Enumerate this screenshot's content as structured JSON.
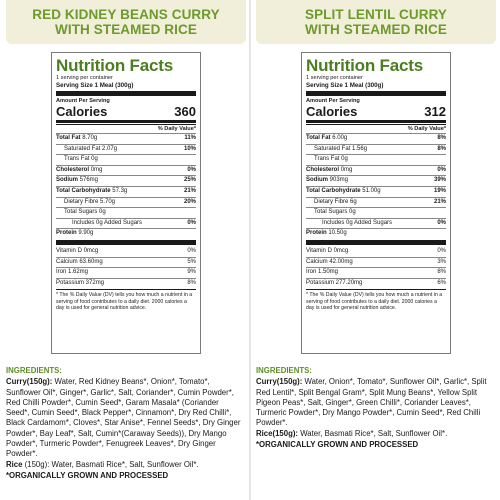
{
  "products": [
    {
      "banner": "RED KIDNEY BEANS CURRY\nWITH STEAMED RICE",
      "nutrition": {
        "title": "Nutrition Facts",
        "servings": "1 serving per container",
        "serving_size_label": "Serving Size",
        "serving_size_value": "1 Meal (300g)",
        "amount_per_serving": "Amount Per Serving",
        "calories_label": "Calories",
        "calories_value": "360",
        "dv_header": "% Daily Value*",
        "rows": [
          {
            "bold": "Total Fat",
            "value": "8.70g",
            "pct": "11%"
          },
          {
            "bold": "",
            "value": "Saturated Fat 2.07g",
            "pct": "10%"
          },
          {
            "bold": "",
            "value": "Trans Fat 0g",
            "pct": ""
          },
          {
            "bold": "Cholesterol",
            "value": "0mg",
            "pct": "0%"
          },
          {
            "bold": "Sodium",
            "value": "576mg",
            "pct": "25%"
          },
          {
            "bold": "Total Carbohydrate",
            "value": "57.3g",
            "pct": "21%"
          },
          {
            "bold": "",
            "value": "Dietary Fibre 5.70g",
            "pct": "20%"
          },
          {
            "bold": "",
            "value": "Total Sugars 0g",
            "pct": ""
          },
          {
            "bold": "",
            "value": "Includes 0g Added Sugars",
            "pct": "0%"
          },
          {
            "bold": "Protein",
            "value": "9.90g",
            "pct": ""
          }
        ],
        "minerals": [
          {
            "value": "Vitamin D 0mcg",
            "pct": "0%"
          },
          {
            "value": "Calcium 63.60mg",
            "pct": "5%"
          },
          {
            "value": "Iron 1.62mg",
            "pct": "9%"
          },
          {
            "value": "Potassium 372mg",
            "pct": "8%"
          }
        ],
        "footnote": "* The % Daily Value (DV) tells you how much a nutrient in a serving of food contributes to a daily diet.  2000 calories a day is used for general nutrition advice."
      },
      "ingredients": {
        "header": "INGREDIENTS:",
        "curry_label": "Curry(150g):",
        "curry_text": " Water, Red Kidney Beans*, Onion*, Tomato*, Sunflower Oil*, Ginger*, Garlic*, Salt, Coriander*, Cumin Powder*, Red Chilli Powder*, Cumin Seed*, Garam Masala* (Coriander Seed*, Cumin Seed*, Black Pepper*, Cinnamon*, Dry Red Chilli*, Black Cardamom*, Cloves*, Star Anise*, Fennel Seeds*, Dry Ginger Powder*, Bay Leaf*, Salt, Cumin*(Caraway Seeds)), Dry Mango Powder*, Turmeric Powder*, Fenugreek Leaves*, Dry Ginger Powder*.",
        "rice_label": "Rice",
        "rice_text": " (150g): Water, Basmati Rice*, Salt, Sunflower Oil*.",
        "organic": "*ORGANICALLY GROWN AND PROCESSED"
      }
    },
    {
      "banner": "SPLIT LENTIL CURRY\nWITH STEAMED RICE",
      "nutrition": {
        "title": "Nutrition Facts",
        "servings": "1 serving per container",
        "serving_size_label": "Serving Size",
        "serving_size_value": "1 Meal (300g)",
        "amount_per_serving": "Amount Per Serving",
        "calories_label": "Calories",
        "calories_value": "312",
        "dv_header": "% Daily Value*",
        "rows": [
          {
            "bold": "Total Fat",
            "value": "6.00g",
            "pct": "8%"
          },
          {
            "bold": "",
            "value": "Saturated Fat 1.56g",
            "pct": "8%"
          },
          {
            "bold": "",
            "value": "Trans Fat 0g",
            "pct": ""
          },
          {
            "bold": "Cholesterol",
            "value": "0mg",
            "pct": "0%"
          },
          {
            "bold": "Sodium",
            "value": "903mg",
            "pct": "39%"
          },
          {
            "bold": "Total Carbohydrate",
            "value": "51.00g",
            "pct": "19%"
          },
          {
            "bold": "",
            "value": "Dietary Fibre 6g",
            "pct": "21%"
          },
          {
            "bold": "",
            "value": "Total Sugars 0g",
            "pct": ""
          },
          {
            "bold": "",
            "value": "Includes 0g Added Sugars",
            "pct": "0%"
          },
          {
            "bold": "Protein",
            "value": "10.50g",
            "pct": ""
          }
        ],
        "minerals": [
          {
            "value": "Vitamin D 0mcg",
            "pct": "0%"
          },
          {
            "value": "Calcium 42.00mg",
            "pct": "3%"
          },
          {
            "value": "Iron 1.50mg",
            "pct": "8%"
          },
          {
            "value": "Potassium 277.20mg",
            "pct": "6%"
          }
        ],
        "footnote": "* The % Daily Value (DV) tells you how much a nutrient in a serving of food contributes to a daily diet.  2000 calories a day is used for general nutrition advice."
      },
      "ingredients": {
        "header": "INGREDIENTS:",
        "curry_label": "Curry(150g):",
        "curry_text": " Water, Onion*, Tomato*, Sunflower Oil*, Garlic*, Split Red Lentil*, Split Bengal Gram*, Split Mung Beans*, Yellow Split Pigeon Peas*, Salt, Ginger*, Green Chilli*, Coriander Leaves*, Turmeric Powder*, Dry Mango Powder*, Cumin Seed*, Red Chilli Powder*.",
        "rice_label": "Rice(150g):",
        "rice_text": " Water, Basmati Rice*, Salt, Sunflower Oil*.",
        "organic": "*ORGANICALLY GROWN AND PROCESSED"
      }
    }
  ]
}
